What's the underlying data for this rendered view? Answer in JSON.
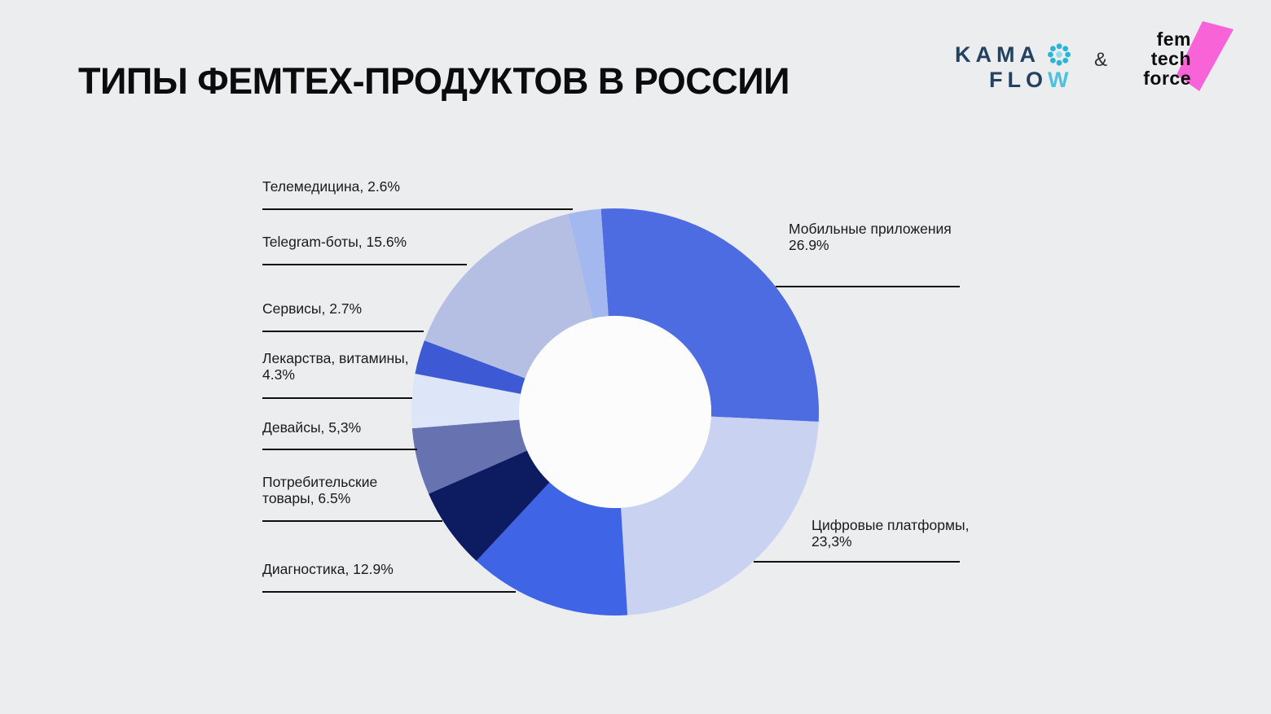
{
  "page": {
    "background": "#ecedef"
  },
  "header": {
    "title": "ТИПЫ ФЕМТЕХ-ПРОДУКТОВ В РОССИИ"
  },
  "logos": {
    "kama_flow": {
      "word1": "KAMA",
      "word2_dark": "FLO",
      "word2_light": "W",
      "navy": "#24425f",
      "cyan": "#4cc2e0",
      "flower_teal": "#2ab5d6"
    },
    "ampersand": "&",
    "femtech_force": {
      "line1": "fem",
      "line2": "tech",
      "line3": "force",
      "pink": "#f863d8"
    }
  },
  "chart_data": {
    "type": "pie",
    "variant": "donut",
    "title": "ТИПЫ ФЕМТЕХ-ПРОДУКТОВ В РОССИИ",
    "unit": "%",
    "legend": "none",
    "label_style": "leader-line callouts",
    "segments": [
      {
        "name": "Мобильные приложения",
        "value": 26.9,
        "color": "#4d6ce2",
        "label_text": "Мобильные приложения\n26.9%"
      },
      {
        "name": "Цифровые платформы",
        "value": 23.3,
        "color": "#c9d2f1",
        "label_text": "Цифровые платформы,\n23,3%"
      },
      {
        "name": "Диагностика",
        "value": 12.9,
        "color": "#4064e6",
        "label_text": "Диагностика, 12.9%"
      },
      {
        "name": "Потребительские товары",
        "value": 6.5,
        "color": "#0d1b61",
        "label_text": "Потребительские\nтовары, 6.5%"
      },
      {
        "name": "Девайсы",
        "value": 5.3,
        "color": "#6673b0",
        "label_text": "Девайсы, 5,3%"
      },
      {
        "name": "Лекарства, витамины",
        "value": 4.3,
        "color": "#dde6f8",
        "label_text": "Лекарства, витамины,\n4.3%"
      },
      {
        "name": "Сервисы",
        "value": 2.7,
        "color": "#3d5ad4",
        "label_text": "Сервисы, 2.7%"
      },
      {
        "name": "Telegram-боты",
        "value": 15.6,
        "color": "#b5bee3",
        "label_text": "Telegram-боты, 15.6%"
      },
      {
        "name": "Телемедицина",
        "value": 2.6,
        "color": "#a3b8ee",
        "label_text": "Телемедицина, 2.6%"
      }
    ]
  }
}
